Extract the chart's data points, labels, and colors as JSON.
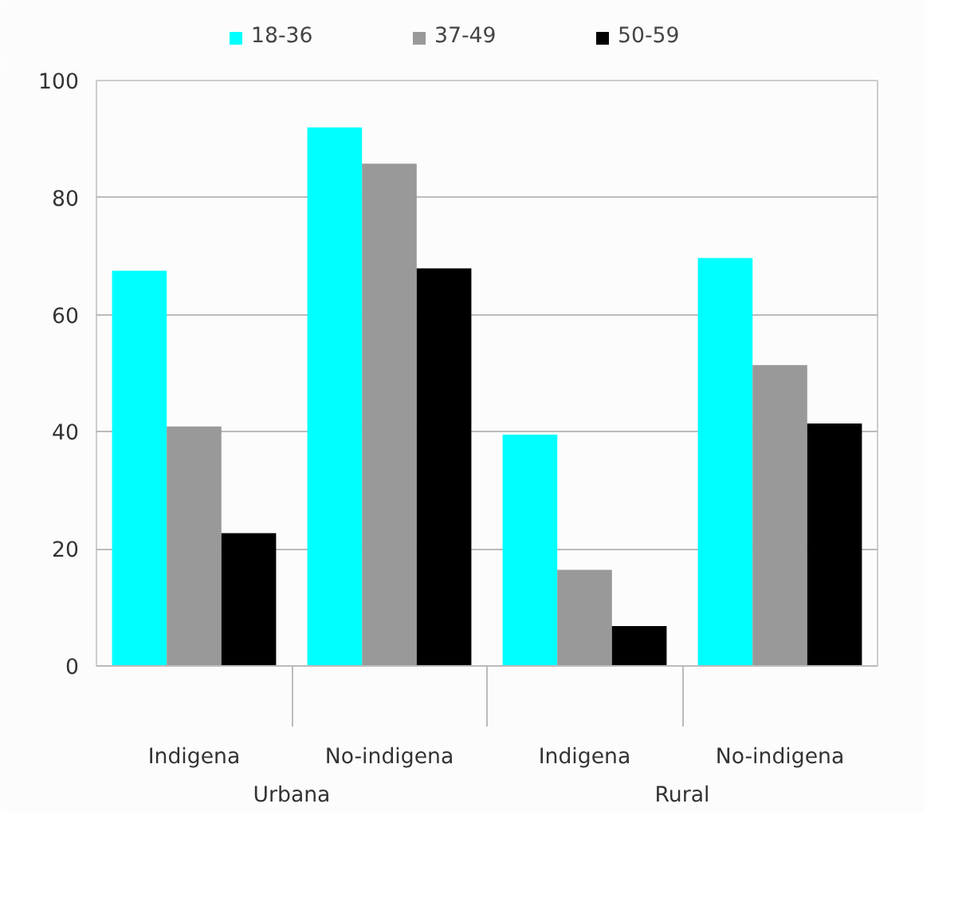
{
  "chart_data": {
    "type": "bar",
    "categories": [
      "Indigena",
      "No-indigena",
      "Indigena",
      "No-indigena"
    ],
    "series": [
      {
        "name": "18-36",
        "color": "#00ffff",
        "values": [
          67.5,
          92,
          39.5,
          69.7
        ]
      },
      {
        "name": "37-49",
        "color": "#999999",
        "values": [
          40.9,
          85.8,
          16.4,
          51.4
        ]
      },
      {
        "name": "50-59",
        "color": "#000000",
        "values": [
          22.7,
          67.9,
          6.8,
          41.4
        ]
      }
    ],
    "annotations": [
      "Urbana",
      "Rural"
    ],
    "ylim": [
      0,
      100
    ],
    "yticks": [
      0,
      20,
      40,
      60,
      80,
      100
    ],
    "grid": "y",
    "legend": "top"
  }
}
